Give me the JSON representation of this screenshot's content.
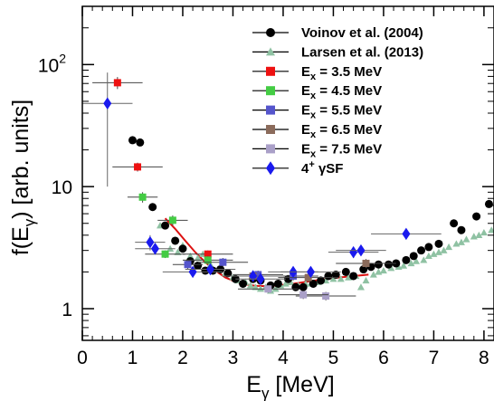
{
  "chart_data": {
    "type": "scatter",
    "xlabel": {
      "base": "E",
      "sub": "γ",
      "rest": " [MeV]"
    },
    "ylabel": {
      "pre": "f(E",
      "sub": "γ",
      "rest": ") [arb. units]"
    },
    "xlim": [
      0,
      8.2
    ],
    "ylim": [
      0.55,
      300
    ],
    "yscale": "log",
    "xticks": [
      "0",
      "1",
      "2",
      "3",
      "4",
      "5",
      "6",
      "7",
      "8"
    ],
    "yticks": [
      {
        "value": 1,
        "label": "1"
      },
      {
        "value": 10,
        "label": "10"
      },
      {
        "value": 100,
        "label": "10",
        "sup": "2"
      }
    ],
    "legend_position": "top-right",
    "series": [
      {
        "name": "Voinov et al. (2004)",
        "key": "voinov",
        "marker": "circle",
        "color": "#000000",
        "points": [
          [
            1.0,
            24
          ],
          [
            1.15,
            23
          ],
          [
            1.4,
            6.8
          ],
          [
            1.65,
            4.8
          ],
          [
            1.85,
            3.6
          ],
          [
            2.0,
            3.1
          ],
          [
            2.15,
            2.45
          ],
          [
            2.3,
            2.25
          ],
          [
            2.45,
            2.05
          ],
          [
            2.6,
            2.05
          ],
          [
            2.75,
            2.1
          ],
          [
            2.9,
            1.95
          ],
          [
            3.05,
            1.75
          ],
          [
            3.2,
            1.6
          ],
          [
            3.4,
            1.75
          ],
          [
            3.55,
            1.7
          ],
          [
            3.75,
            1.55
          ],
          [
            3.9,
            1.6
          ],
          [
            4.1,
            1.75
          ],
          [
            4.25,
            1.5
          ],
          [
            4.4,
            1.5
          ],
          [
            4.6,
            1.6
          ],
          [
            4.75,
            1.7
          ],
          [
            4.9,
            1.85
          ],
          [
            5.05,
            1.9
          ],
          [
            5.25,
            2.0
          ],
          [
            5.4,
            1.85
          ],
          [
            5.6,
            2.1
          ],
          [
            5.75,
            2.2
          ],
          [
            5.9,
            2.3
          ],
          [
            6.1,
            2.3
          ],
          [
            6.25,
            2.35
          ],
          [
            6.45,
            2.5
          ],
          [
            6.6,
            2.7
          ],
          [
            6.75,
            3.0
          ],
          [
            6.9,
            3.2
          ],
          [
            7.1,
            3.4
          ],
          [
            7.4,
            5.0
          ],
          [
            7.55,
            4.4
          ],
          [
            7.85,
            5.7
          ],
          [
            8.1,
            7.2
          ]
        ]
      },
      {
        "name": "Larsen et al. (2013)",
        "key": "larsen",
        "marker": "triangle",
        "color": "#8fc2a3",
        "points": [
          [
            1.55,
            4.8
          ],
          [
            1.75,
            3.1
          ],
          [
            1.9,
            2.9
          ],
          [
            2.0,
            3.3
          ],
          [
            2.15,
            2.7
          ],
          [
            2.3,
            2.6
          ],
          [
            2.4,
            2.8
          ],
          [
            2.55,
            2.3
          ],
          [
            2.7,
            2.1
          ],
          [
            2.85,
            1.95
          ],
          [
            3.0,
            1.8
          ],
          [
            3.1,
            1.7
          ],
          [
            3.25,
            1.65
          ],
          [
            3.35,
            1.55
          ],
          [
            3.45,
            1.5
          ],
          [
            3.55,
            1.45
          ],
          [
            3.65,
            1.5
          ],
          [
            3.75,
            1.4
          ],
          [
            3.85,
            1.45
          ],
          [
            3.95,
            1.55
          ],
          [
            4.05,
            1.6
          ],
          [
            4.15,
            1.65
          ],
          [
            4.3,
            1.55
          ],
          [
            4.45,
            1.6
          ],
          [
            4.55,
            1.6
          ],
          [
            4.7,
            1.65
          ],
          [
            4.85,
            1.7
          ],
          [
            5.0,
            1.75
          ],
          [
            5.15,
            1.75
          ],
          [
            5.3,
            1.8
          ],
          [
            5.45,
            1.85
          ],
          [
            5.55,
            1.5
          ],
          [
            5.65,
            1.7
          ],
          [
            5.8,
            1.9
          ],
          [
            5.9,
            2.0
          ],
          [
            6.0,
            2.05
          ],
          [
            6.15,
            2.15
          ],
          [
            6.3,
            2.2
          ],
          [
            6.4,
            2.25
          ],
          [
            6.55,
            2.35
          ],
          [
            6.65,
            2.45
          ],
          [
            6.8,
            2.5
          ],
          [
            6.9,
            2.7
          ],
          [
            7.0,
            2.8
          ],
          [
            7.1,
            2.9
          ],
          [
            7.2,
            3.0
          ],
          [
            7.3,
            3.2
          ],
          [
            7.45,
            3.4
          ],
          [
            7.55,
            3.5
          ],
          [
            7.65,
            3.7
          ],
          [
            7.8,
            3.9
          ],
          [
            7.9,
            4.0
          ],
          [
            8.0,
            4.2
          ],
          [
            8.15,
            4.4
          ]
        ]
      },
      {
        "name": "E_x = 3.5 MeV",
        "label": {
          "base": "E",
          "sub": "x",
          "rest": " = 3.5 MeV"
        },
        "key": "ex35",
        "marker": "square",
        "color": "#ee1111",
        "points": [
          [
            0.7,
            71,
            0.5,
            8
          ],
          [
            1.1,
            14.5,
            0.5,
            1.2
          ],
          [
            2.5,
            2.8,
            0.5,
            0.2
          ]
        ]
      },
      {
        "name": "E_x = 4.5 MeV",
        "label": {
          "base": "E",
          "sub": "x",
          "rest": " = 4.5 MeV"
        },
        "key": "ex45",
        "marker": "square",
        "color": "#44cc44",
        "points": [
          [
            1.2,
            8.2,
            0.3,
            0.8
          ],
          [
            1.8,
            5.3,
            0.3,
            0.5
          ],
          [
            1.65,
            2.8,
            0.4,
            0.2
          ],
          [
            2.5,
            2.5,
            0.5,
            0.2
          ]
        ]
      },
      {
        "name": "E_x = 5.5 MeV",
        "label": {
          "base": "E",
          "sub": "x",
          "rest": " = 5.5 MeV"
        },
        "key": "ex55",
        "marker": "square",
        "color": "#5555cc",
        "points": [
          [
            2.8,
            2.4,
            0.5,
            0.2
          ],
          [
            3.5,
            1.9,
            0.5,
            0.15
          ],
          [
            4.2,
            1.85,
            0.5,
            0.15
          ],
          [
            2.1,
            2.3,
            0.3,
            0.2
          ]
        ]
      },
      {
        "name": "E_x = 6.5 MeV",
        "label": {
          "base": "E",
          "sub": "x",
          "rest": " = 6.5 MeV"
        },
        "key": "ex65",
        "marker": "square",
        "color": "#8b6b5b",
        "points": [
          [
            5.65,
            2.35,
            0.6,
            0.2
          ],
          [
            3.4,
            1.85,
            0.6,
            0.15
          ],
          [
            4.5,
            1.8,
            0.6,
            0.15
          ]
        ]
      },
      {
        "name": "E_x = 7.5 MeV",
        "label": {
          "base": "E",
          "sub": "x",
          "rest": " = 7.5 MeV"
        },
        "key": "ex75",
        "marker": "square",
        "color": "#aaa0c8",
        "points": [
          [
            4.85,
            1.27,
            0.6,
            0.1
          ],
          [
            4.4,
            1.3,
            0.5,
            0.1
          ],
          [
            3.7,
            1.45,
            0.6,
            0.1
          ]
        ]
      },
      {
        "name": "4+ γSF",
        "label": {
          "base": "4",
          "sup": "+",
          "rest": " γSF"
        },
        "key": "gsf4",
        "marker": "diamond",
        "color": "#1a1aee",
        "points": [
          [
            0.5,
            48,
            0.5,
            38
          ],
          [
            1.35,
            3.5,
            0.3,
            0.5
          ],
          [
            1.45,
            3.1,
            0.4,
            0.3
          ],
          [
            2.2,
            2.0,
            0.6,
            0.2
          ],
          [
            2.55,
            2.1,
            0.5,
            0.2
          ],
          [
            3.4,
            1.85,
            0.6,
            0.15
          ],
          [
            3.55,
            1.75,
            0.5,
            0.15
          ],
          [
            4.2,
            2.0,
            0.5,
            0.15
          ],
          [
            4.55,
            2.0,
            0.6,
            0.15
          ],
          [
            5.4,
            2.9,
            0.5,
            0.3
          ],
          [
            5.55,
            3.0,
            0.5,
            0.3
          ],
          [
            6.45,
            4.1,
            0.7,
            0.4
          ]
        ]
      }
    ],
    "fit_curve": {
      "color": "#dd1111",
      "points": [
        [
          1.65,
          5.5
        ],
        [
          1.85,
          4.5
        ],
        [
          2.05,
          3.6
        ],
        [
          2.25,
          2.9
        ],
        [
          2.45,
          2.4
        ],
        [
          2.65,
          2.05
        ],
        [
          2.85,
          1.8
        ],
        [
          3.05,
          1.66
        ],
        [
          3.25,
          1.58
        ],
        [
          3.45,
          1.54
        ],
        [
          3.65,
          1.53
        ],
        [
          3.9,
          1.55
        ],
        [
          4.2,
          1.6
        ],
        [
          4.5,
          1.67
        ],
        [
          4.8,
          1.74
        ],
        [
          5.1,
          1.8
        ],
        [
          5.4,
          1.85
        ],
        [
          5.7,
          1.9
        ]
      ]
    }
  }
}
